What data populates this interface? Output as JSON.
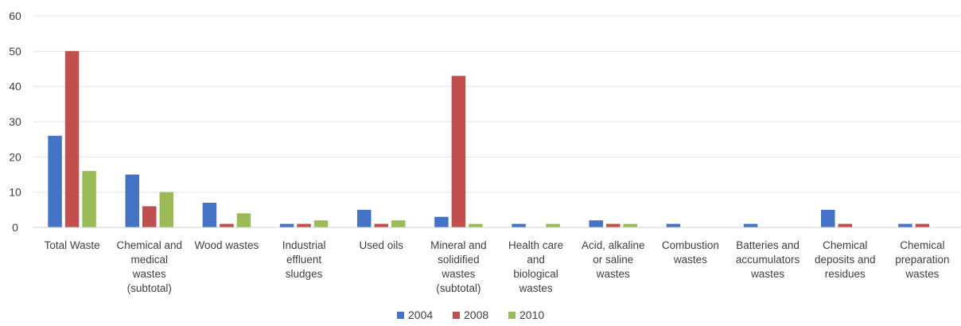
{
  "chart_data": {
    "type": "bar",
    "title": "",
    "xlabel": "",
    "ylabel": "",
    "ylim": [
      0,
      60
    ],
    "yticks": [
      0,
      10,
      20,
      30,
      40,
      50,
      60
    ],
    "grid": true,
    "legend_position": "bottom",
    "categories": [
      [
        "Total Waste"
      ],
      [
        "Chemical and",
        "medical",
        "wastes",
        "(subtotal)"
      ],
      [
        "Wood wastes"
      ],
      [
        "Industrial",
        "effluent",
        "sludges"
      ],
      [
        "Used oils"
      ],
      [
        "Mineral and",
        "solidified",
        "wastes",
        "(subtotal)"
      ],
      [
        "Health care",
        "and",
        "biological",
        "wastes"
      ],
      [
        "Acid, alkaline",
        "or saline",
        "wastes"
      ],
      [
        "Combustion",
        "wastes"
      ],
      [
        "Batteries and",
        "accumulators",
        "wastes"
      ],
      [
        "Chemical",
        "deposits and",
        "residues"
      ],
      [
        "Chemical",
        "preparation",
        "wastes"
      ]
    ],
    "series": [
      {
        "name": "2004",
        "color": "#4472C4",
        "values": [
          26,
          15,
          7,
          1,
          5,
          3,
          1,
          2,
          1,
          1,
          5,
          1
        ]
      },
      {
        "name": "2008",
        "color": "#C0504D",
        "values": [
          50,
          6,
          1,
          1,
          1,
          43,
          0,
          1,
          0,
          0,
          1,
          1
        ]
      },
      {
        "name": "2010",
        "color": "#9BBB59",
        "values": [
          16,
          10,
          4,
          2,
          2,
          1,
          1,
          1,
          0,
          0,
          0,
          0
        ]
      }
    ]
  }
}
